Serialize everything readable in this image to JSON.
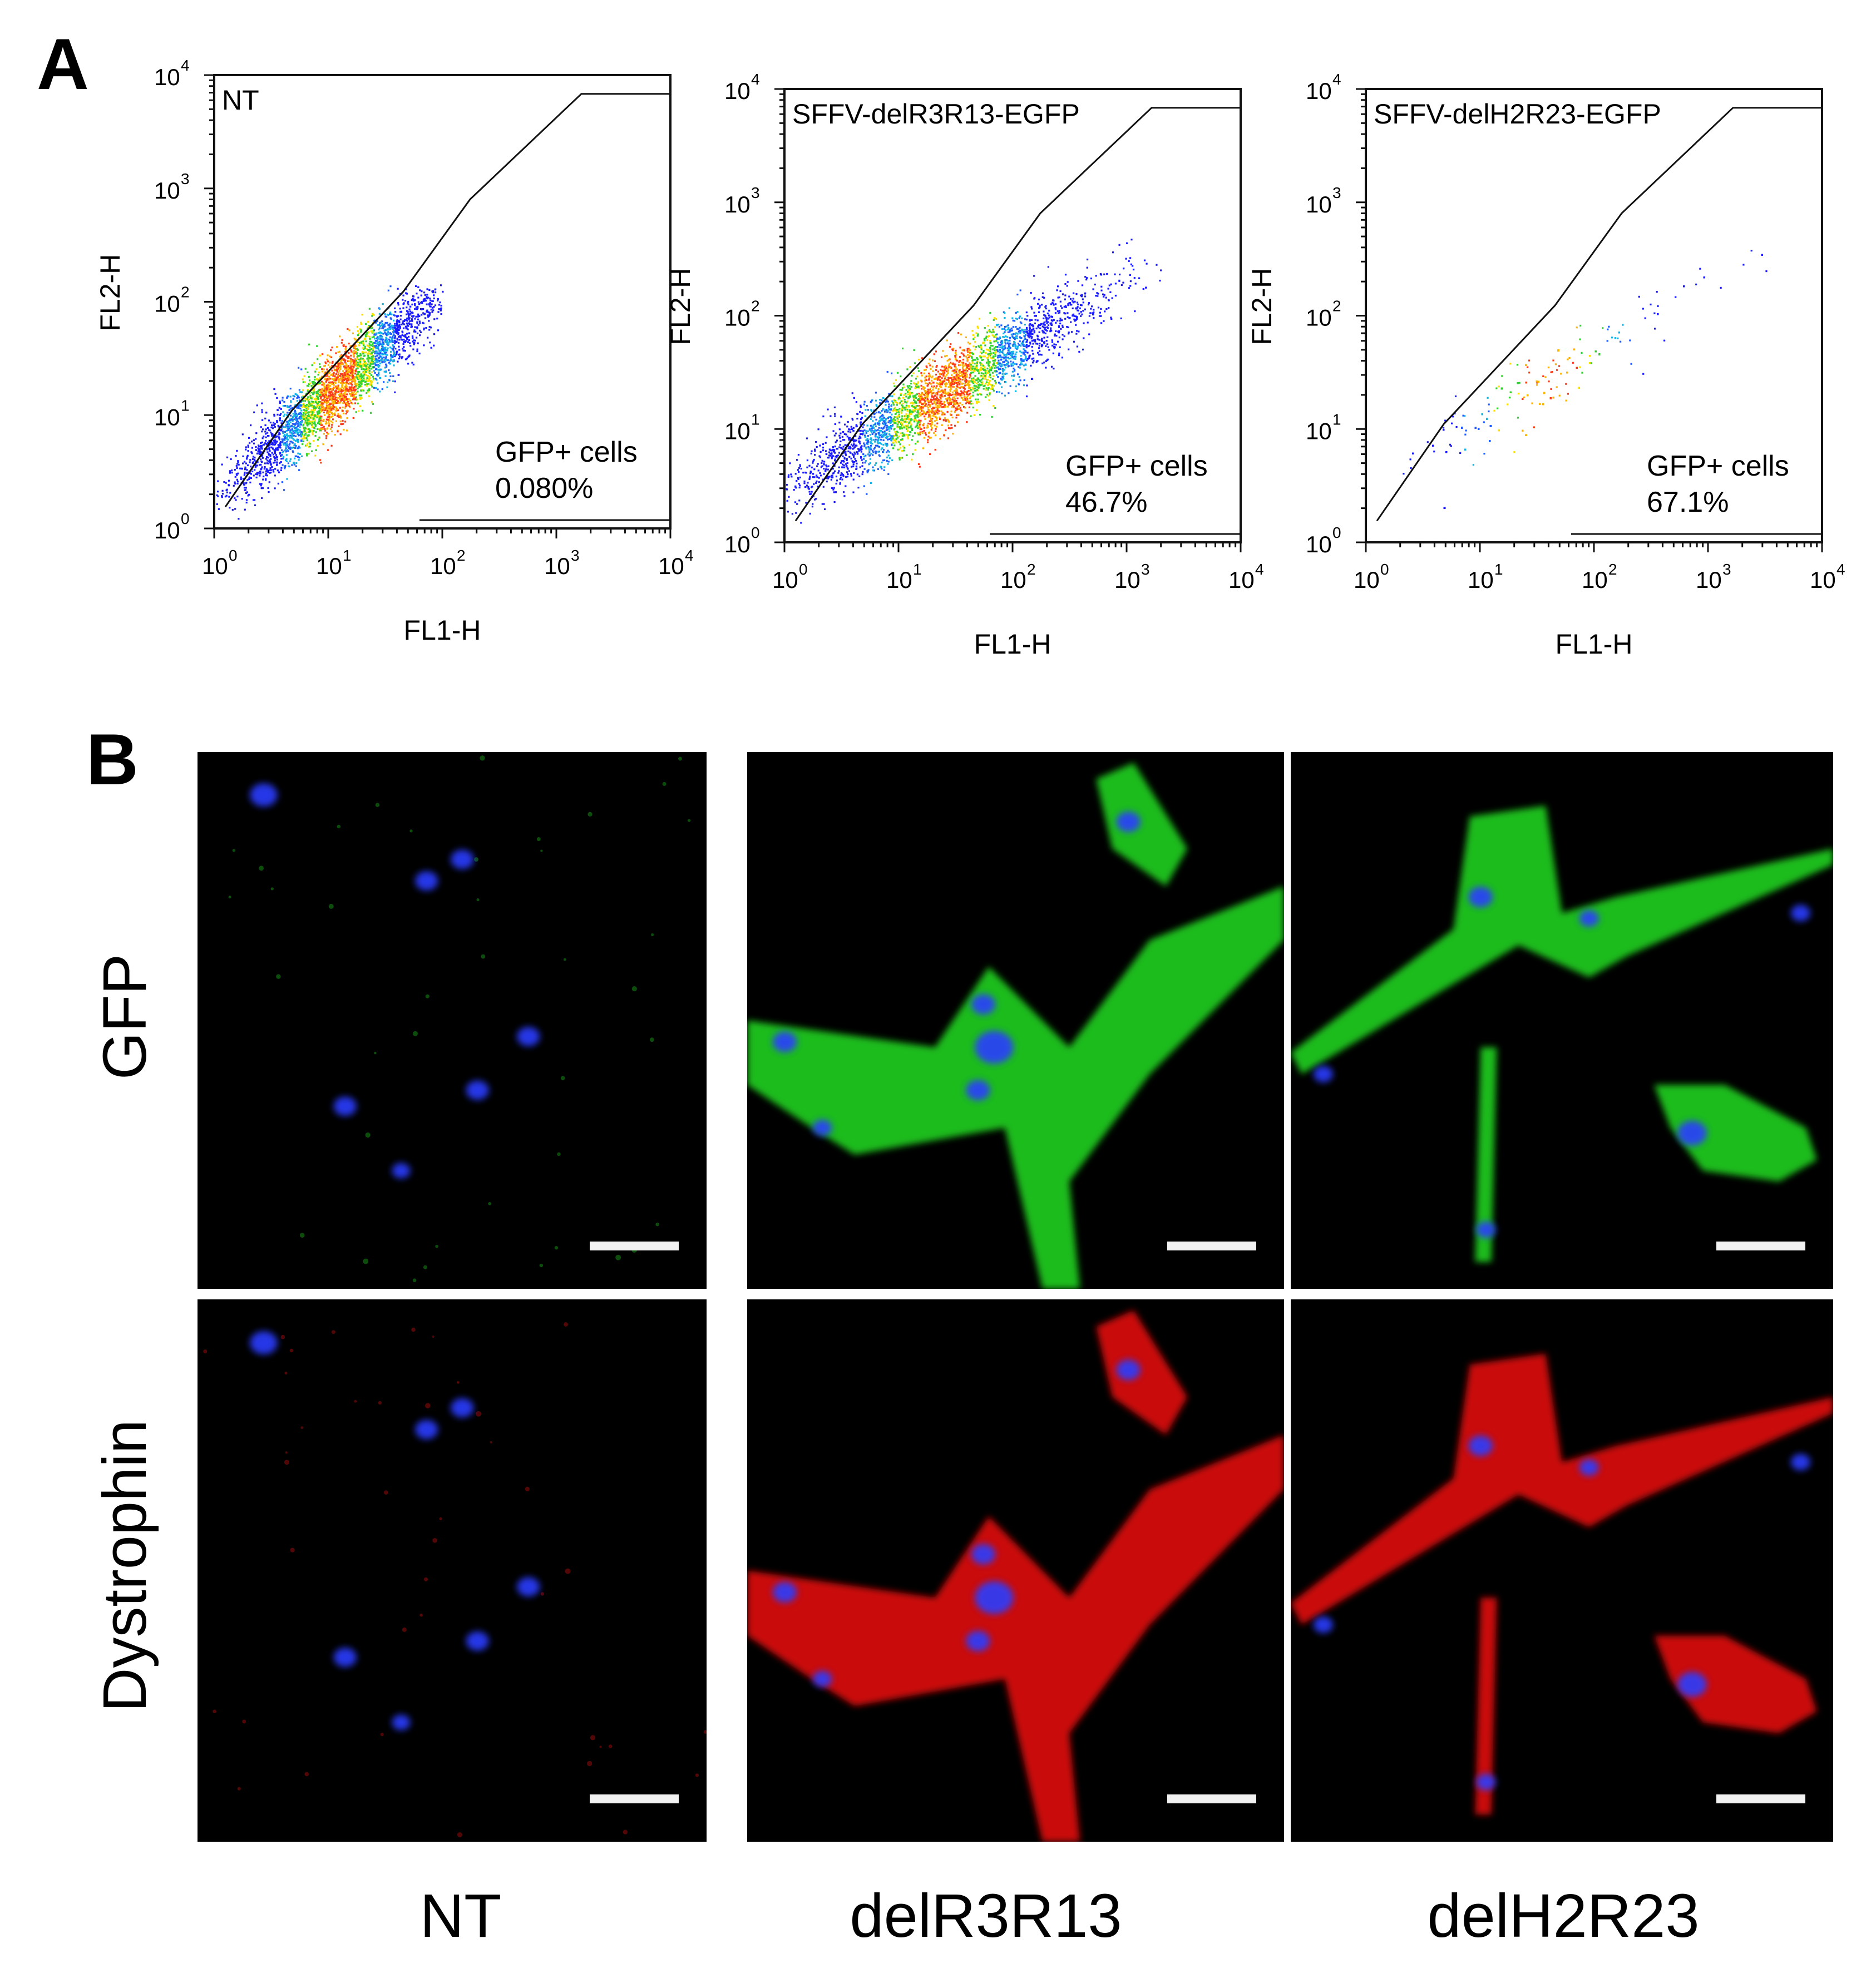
{
  "panel_a": {
    "letter": "A",
    "x_axis_label": "FL1-H",
    "y_axis_label": "FL2-H",
    "tick_base": "10",
    "tick_exponents": [
      "0",
      "1",
      "2",
      "3",
      "4"
    ],
    "gate_label": "GFP+ cells",
    "plots": [
      {
        "title": "NT",
        "gfp_percent": "0.080%",
        "positive_fraction": 0.0008
      },
      {
        "title": "SFFV-delR3R13-EGFP",
        "gfp_percent": "46.7%",
        "positive_fraction": 0.467
      },
      {
        "title": "SFFV-delH2R23-EGFP",
        "gfp_percent": "67.1%",
        "positive_fraction": 0.671
      }
    ]
  },
  "panel_b": {
    "letter": "B",
    "row_labels": [
      "GFP",
      "Dystrophin"
    ],
    "column_labels": [
      "NT",
      "delR3R13",
      "delH2R23"
    ],
    "channel_colors": {
      "GFP": "#22dd22",
      "Dystrophin": "#ee1111",
      "nucleus": "#2a3cff"
    }
  },
  "chart_data": [
    {
      "type": "scatter",
      "title": "NT",
      "xlabel": "FL1-H",
      "ylabel": "FL2-H",
      "xscale": "log",
      "yscale": "log",
      "xlim": [
        1,
        10000
      ],
      "ylim": [
        1,
        10000
      ],
      "annotation": "GFP+ cells 0.080%",
      "gate_percent": 0.08,
      "population_center": [
        12,
        18
      ],
      "population_spread_decades": [
        0.45,
        0.45
      ],
      "population_extent": {
        "x": [
          0.7,
          100
        ],
        "y": [
          0.8,
          150
        ]
      }
    },
    {
      "type": "scatter",
      "title": "SFFV-delR3R13-EGFP",
      "xlabel": "FL1-H",
      "ylabel": "FL2-H",
      "xscale": "log",
      "yscale": "log",
      "xlim": [
        1,
        10000
      ],
      "ylim": [
        1,
        10000
      ],
      "annotation": "GFP+ cells 46.7%",
      "gate_percent": 46.7,
      "population_center": [
        25,
        22
      ],
      "population_spread_decades": [
        0.65,
        0.45
      ],
      "population_extent": {
        "x": [
          0.8,
          2000
        ],
        "y": [
          0.8,
          700
        ]
      }
    },
    {
      "type": "scatter",
      "title": "SFFV-delH2R23-EGFP",
      "xlabel": "FL1-H",
      "ylabel": "FL2-H",
      "xscale": "log",
      "yscale": "log",
      "xlim": [
        1,
        10000
      ],
      "ylim": [
        1,
        10000
      ],
      "annotation": "GFP+ cells 67.1%",
      "gate_percent": 67.1,
      "population_center": [
        40,
        30
      ],
      "population_spread_decades": [
        0.7,
        0.45
      ],
      "population_extent": {
        "x": [
          0.8,
          3500
        ],
        "y": [
          0.8,
          1500
        ]
      }
    }
  ]
}
